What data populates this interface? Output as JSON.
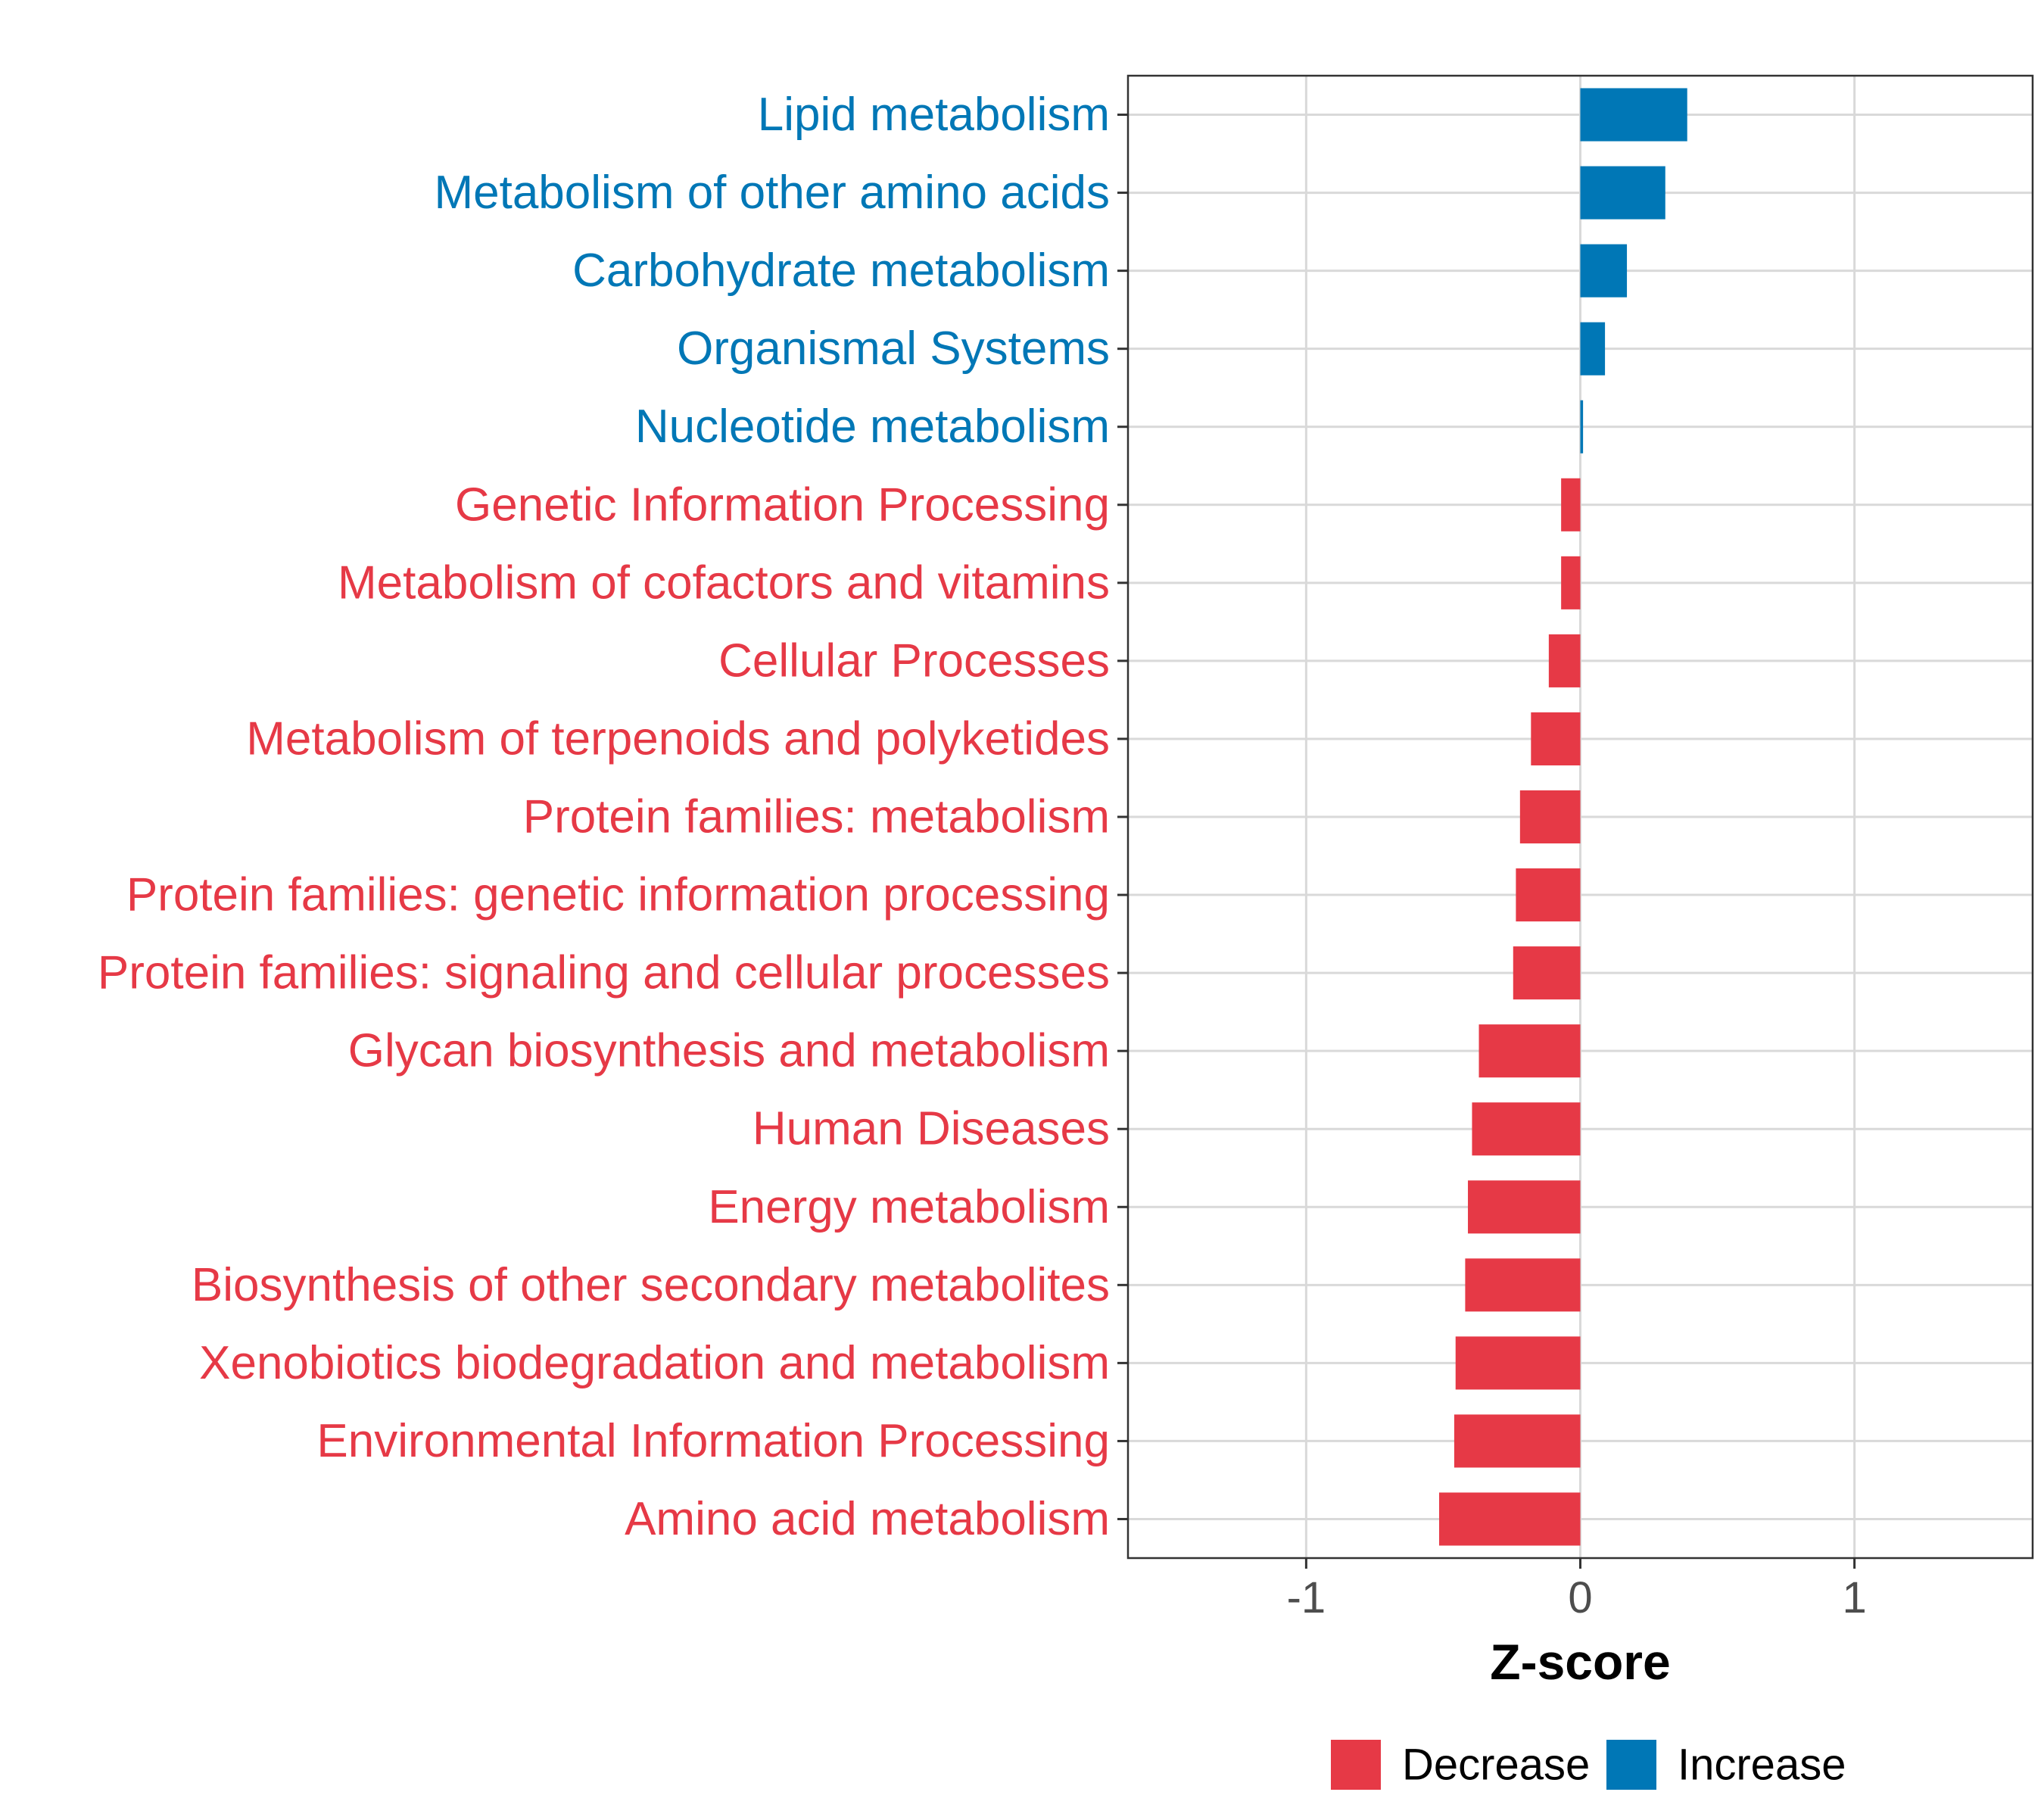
{
  "chart_data": {
    "type": "bar",
    "orientation": "horizontal",
    "title": "",
    "xlabel": "Z-score",
    "ylabel": "",
    "xlim": [
      -1.65,
      1.65
    ],
    "xticks": [
      -1,
      0,
      1
    ],
    "xtick_labels": [
      "-1",
      "0",
      "1"
    ],
    "grid": true,
    "legend_position": "bottom",
    "categories": [
      "Lipid metabolism",
      "Metabolism of other amino acids",
      "Carbohydrate metabolism",
      "Organismal Systems",
      "Nucleotide metabolism",
      "Genetic Information Processing",
      "Metabolism of cofactors and vitamins",
      "Cellular Processes",
      "Metabolism of terpenoids and polyketides",
      "Protein families: metabolism",
      "Protein families: genetic information processing",
      "Protein families: signaling and cellular processes",
      "Glycan biosynthesis and metabolism",
      "Human Diseases",
      "Energy metabolism",
      "Biosynthesis of other secondary metabolites",
      "Xenobiotics biodegradation and metabolism",
      "Environmental Information Processing",
      "Amino acid metabolism"
    ],
    "values": [
      0.39,
      0.31,
      0.17,
      0.09,
      0.01,
      -0.07,
      -0.07,
      -0.115,
      -0.18,
      -0.22,
      -0.235,
      -0.245,
      -0.37,
      -0.395,
      -0.41,
      -0.42,
      -0.455,
      -0.46,
      -0.515
    ],
    "groups": [
      "Increase",
      "Increase",
      "Increase",
      "Increase",
      "Increase",
      "Decrease",
      "Decrease",
      "Decrease",
      "Decrease",
      "Decrease",
      "Decrease",
      "Decrease",
      "Decrease",
      "Decrease",
      "Decrease",
      "Decrease",
      "Decrease",
      "Decrease",
      "Decrease"
    ],
    "legend": [
      {
        "name": "Decrease",
        "color": "#e63946"
      },
      {
        "name": "Increase",
        "color": "#0077b6"
      }
    ]
  }
}
